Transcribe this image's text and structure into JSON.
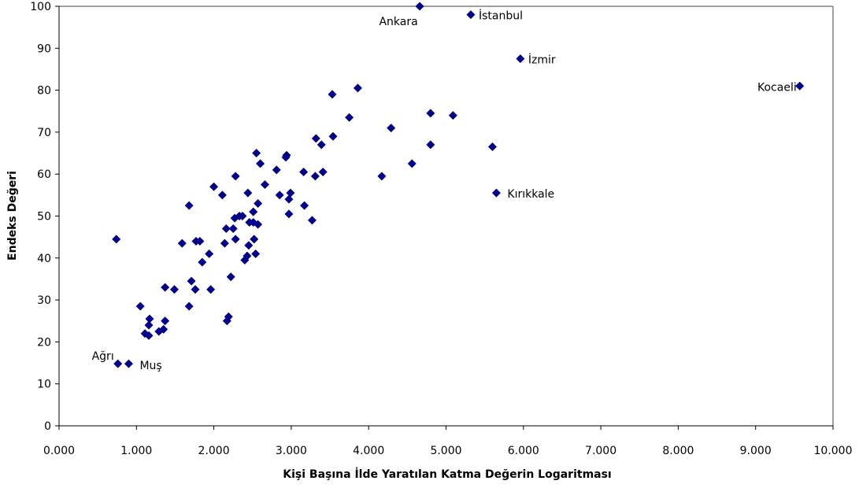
{
  "chart_data": {
    "type": "scatter",
    "title": "",
    "xlabel": "Kişi Başına İlde Yaratılan Katma Değerin Logaritması",
    "ylabel": "Endeks Değeri",
    "xlim": [
      0,
      10
    ],
    "ylim": [
      0,
      100
    ],
    "grid": false,
    "x_ticks": [
      0,
      1,
      2,
      3,
      4,
      5,
      6,
      7,
      8,
      9,
      10
    ],
    "x_tick_labels": [
      "0.000",
      "1.000",
      "2.000",
      "3.000",
      "4.000",
      "5.000",
      "6.000",
      "7.000",
      "8.000",
      "9.000",
      "10.000"
    ],
    "y_ticks": [
      0,
      10,
      20,
      30,
      40,
      50,
      60,
      70,
      80,
      90,
      100
    ],
    "y_tick_labels": [
      "0",
      "10",
      "20",
      "30",
      "40",
      "50",
      "60",
      "70",
      "80",
      "90",
      "100"
    ],
    "marker_color": "#00008B",
    "points": [
      {
        "x": 4.66,
        "y": 100,
        "label": "Ankara"
      },
      {
        "x": 5.32,
        "y": 98,
        "label": "İstanbul"
      },
      {
        "x": 5.96,
        "y": 87.5,
        "label": "İzmir"
      },
      {
        "x": 9.57,
        "y": 81,
        "label": "Kocaeli"
      },
      {
        "x": 5.65,
        "y": 55.5,
        "label": "Kırıkkale"
      },
      {
        "x": 0.76,
        "y": 14.8,
        "label": "Ağrı"
      },
      {
        "x": 0.9,
        "y": 14.8,
        "label": "Muş"
      },
      {
        "x": 0.74,
        "y": 44.5
      },
      {
        "x": 1.05,
        "y": 28.5
      },
      {
        "x": 1.11,
        "y": 22
      },
      {
        "x": 1.16,
        "y": 21.5
      },
      {
        "x": 1.16,
        "y": 24
      },
      {
        "x": 1.17,
        "y": 25.5
      },
      {
        "x": 1.29,
        "y": 22.5
      },
      {
        "x": 1.35,
        "y": 23
      },
      {
        "x": 1.37,
        "y": 25
      },
      {
        "x": 1.37,
        "y": 33
      },
      {
        "x": 1.49,
        "y": 32.5
      },
      {
        "x": 1.59,
        "y": 43.5
      },
      {
        "x": 1.68,
        "y": 28.5
      },
      {
        "x": 1.68,
        "y": 52.5
      },
      {
        "x": 1.71,
        "y": 34.5
      },
      {
        "x": 1.76,
        "y": 32.5
      },
      {
        "x": 1.77,
        "y": 44
      },
      {
        "x": 1.82,
        "y": 44
      },
      {
        "x": 1.85,
        "y": 39
      },
      {
        "x": 1.94,
        "y": 41
      },
      {
        "x": 1.96,
        "y": 32.5
      },
      {
        "x": 2.0,
        "y": 57
      },
      {
        "x": 2.11,
        "y": 55
      },
      {
        "x": 2.14,
        "y": 43.5
      },
      {
        "x": 2.16,
        "y": 47
      },
      {
        "x": 2.17,
        "y": 25
      },
      {
        "x": 2.19,
        "y": 26
      },
      {
        "x": 2.22,
        "y": 35.5
      },
      {
        "x": 2.25,
        "y": 47
      },
      {
        "x": 2.27,
        "y": 49.5
      },
      {
        "x": 2.28,
        "y": 44.5
      },
      {
        "x": 2.28,
        "y": 59.5
      },
      {
        "x": 2.33,
        "y": 50
      },
      {
        "x": 2.37,
        "y": 50
      },
      {
        "x": 2.4,
        "y": 39.5
      },
      {
        "x": 2.43,
        "y": 40.5
      },
      {
        "x": 2.44,
        "y": 55.5
      },
      {
        "x": 2.45,
        "y": 43
      },
      {
        "x": 2.46,
        "y": 48.5
      },
      {
        "x": 2.51,
        "y": 48.5
      },
      {
        "x": 2.51,
        "y": 51
      },
      {
        "x": 2.52,
        "y": 44.5
      },
      {
        "x": 2.54,
        "y": 41
      },
      {
        "x": 2.55,
        "y": 65
      },
      {
        "x": 2.57,
        "y": 53
      },
      {
        "x": 2.57,
        "y": 48
      },
      {
        "x": 2.6,
        "y": 62.5
      },
      {
        "x": 2.66,
        "y": 57.5
      },
      {
        "x": 2.81,
        "y": 61
      },
      {
        "x": 2.85,
        "y": 55
      },
      {
        "x": 2.93,
        "y": 64
      },
      {
        "x": 2.94,
        "y": 64.5
      },
      {
        "x": 2.97,
        "y": 50.5
      },
      {
        "x": 2.97,
        "y": 54
      },
      {
        "x": 2.99,
        "y": 55.5
      },
      {
        "x": 3.16,
        "y": 60.5
      },
      {
        "x": 3.17,
        "y": 52.5
      },
      {
        "x": 3.27,
        "y": 49
      },
      {
        "x": 3.31,
        "y": 59.5
      },
      {
        "x": 3.32,
        "y": 68.5
      },
      {
        "x": 3.39,
        "y": 67
      },
      {
        "x": 3.41,
        "y": 60.5
      },
      {
        "x": 3.53,
        "y": 79
      },
      {
        "x": 3.54,
        "y": 69
      },
      {
        "x": 3.75,
        "y": 73.5
      },
      {
        "x": 3.86,
        "y": 80.5
      },
      {
        "x": 4.17,
        "y": 59.5
      },
      {
        "x": 4.29,
        "y": 71
      },
      {
        "x": 4.56,
        "y": 62.5
      },
      {
        "x": 4.8,
        "y": 74.5
      },
      {
        "x": 4.8,
        "y": 67
      },
      {
        "x": 5.09,
        "y": 74
      },
      {
        "x": 5.6,
        "y": 66.5
      }
    ]
  }
}
